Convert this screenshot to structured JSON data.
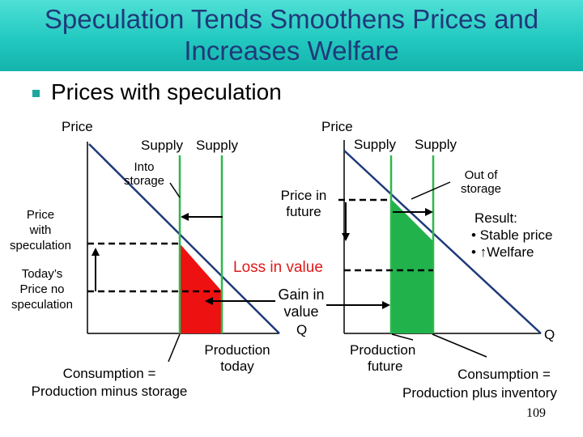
{
  "slide": {
    "title_line1": "Speculation Tends Smoothens Prices and",
    "title_line2": "Increases Welfare",
    "bullet": "Prices with speculation",
    "page_number": "109"
  },
  "left_panel": {
    "price_axis": "Price",
    "supply1": "Supply",
    "supply2": "Supply",
    "into_storage_1": "Into",
    "into_storage_2": "storage",
    "price_with_spec_1": "Price",
    "price_with_spec_2": "with",
    "price_with_spec_3": "speculation",
    "todays_price_1": "Today’s",
    "todays_price_2": "Price no",
    "todays_price_3": "speculation",
    "production_today_1": "Production",
    "production_today_2": "today",
    "consumption_1": "Consumption =",
    "consumption_2": "Production minus storage"
  },
  "center_labels": {
    "price_in_future_1": "Price in",
    "price_in_future_2": "future",
    "loss_in_value": "Loss in value",
    "gain_1": "Gain in",
    "gain_2": "value",
    "q_left": "Q"
  },
  "right_panel": {
    "price_axis": "Price",
    "supply1": "Supply",
    "supply2": "Supply",
    "out_of_storage_1": "Out of",
    "out_of_storage_2": "storage",
    "result_title": "Result:",
    "result_item1": "• Stable price",
    "result_item2": "• ↑Welfare",
    "production_future_1": "Production",
    "production_future_2": "future",
    "consumption_1": "Consumption =",
    "consumption_2": "Production plus inventory",
    "q_right": "Q"
  },
  "colors": {
    "title_text": "#1f3a7a",
    "title_band": "#22c9c0",
    "supply_line": "#2db84a",
    "loss_text": "#e01a1a",
    "red_area": "#ee1111",
    "green_area": "#22b24c"
  }
}
